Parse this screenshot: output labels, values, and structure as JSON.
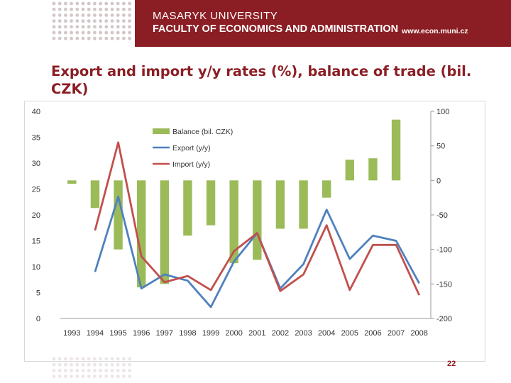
{
  "header": {
    "university": "MASARYK UNIVERSITY",
    "faculty": "FACULTY OF ECONOMICS AND ADMINISTRATION",
    "website": "www.econ.muni.cz"
  },
  "slide": {
    "title_line1": "Export and import y/y rates (%), balance of trade (bil.",
    "title_line2": "CZK)",
    "page_number": "22"
  },
  "colors": {
    "brand": "#8b1e24",
    "balance": "#9bbb59",
    "export": "#4f81bd",
    "import": "#c0504d"
  },
  "chart_data": {
    "type": "bar",
    "categories": [
      "1993",
      "1994",
      "1995",
      "1996",
      "1997",
      "1998",
      "1999",
      "2000",
      "2001",
      "2002",
      "2003",
      "2004",
      "2005",
      "2006",
      "2007",
      "2008"
    ],
    "series": [
      {
        "name": "Balance (bil. CZK)",
        "type": "bar",
        "axis": "right",
        "values": [
          -5,
          -40,
          -100,
          -155,
          -150,
          -80,
          -65,
          -120,
          -115,
          -70,
          -70,
          -25,
          30,
          32,
          88,
          null
        ]
      },
      {
        "name": "Export (y/y)",
        "type": "line",
        "axis": "left",
        "values": [
          null,
          9,
          23.5,
          5.8,
          8.5,
          7.3,
          2.2,
          11,
          16.5,
          5.8,
          10.5,
          21,
          11.5,
          16,
          15,
          6.8
        ]
      },
      {
        "name": "Import (y/y)",
        "type": "line",
        "axis": "left",
        "values": [
          null,
          17,
          34,
          12,
          7,
          8.2,
          5.5,
          13,
          16.5,
          5.3,
          8.5,
          18,
          5.5,
          14.2,
          14.2,
          4.5
        ]
      }
    ],
    "y_left": {
      "min": 0,
      "max": 40,
      "ticks": [
        "0",
        "5",
        "10",
        "15",
        "20",
        "25",
        "30",
        "35",
        "40"
      ]
    },
    "y_right": {
      "min": -200,
      "max": 100,
      "ticks": [
        "-200",
        "-150",
        "-100",
        "-50",
        "0",
        "50",
        "100"
      ]
    },
    "legend": "top-left inside plot",
    "grid": false
  }
}
